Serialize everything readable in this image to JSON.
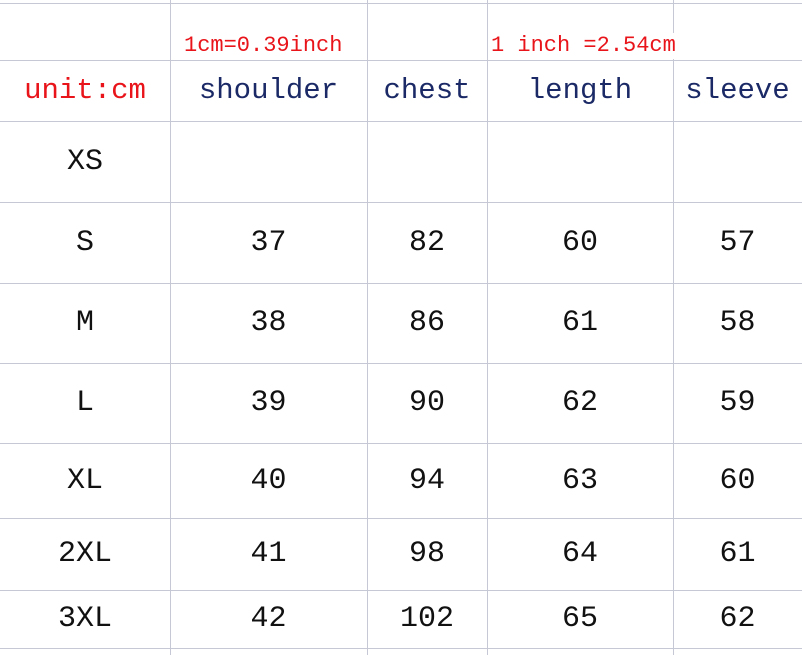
{
  "notes": {
    "cm_to_inch": "1cm=0.39inch",
    "inch_to_cm": "1 inch =2.54cm"
  },
  "header": {
    "unit": "unit:cm",
    "columns": [
      "shoulder",
      "chest",
      "length",
      "sleeve"
    ]
  },
  "rows": [
    {
      "size": "XS",
      "values": [
        "",
        "",
        "",
        ""
      ]
    },
    {
      "size": "S",
      "values": [
        "37",
        "82",
        "60",
        "57"
      ]
    },
    {
      "size": "M",
      "values": [
        "38",
        "86",
        "61",
        "58"
      ]
    },
    {
      "size": "L",
      "values": [
        "39",
        "90",
        "62",
        "59"
      ]
    },
    {
      "size": "XL",
      "values": [
        "40",
        "94",
        "63",
        "60"
      ]
    },
    {
      "size": "2XL",
      "values": [
        "41",
        "98",
        "64",
        "61"
      ]
    },
    {
      "size": "3XL",
      "values": [
        "42",
        "102",
        "65",
        "62"
      ]
    }
  ],
  "colors": {
    "grid": "#c6c8d6",
    "note_red": "#e8141a",
    "header_blue": "#1b2a66",
    "text": "#111111"
  }
}
